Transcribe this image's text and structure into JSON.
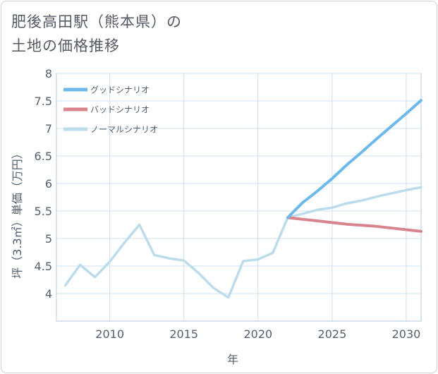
{
  "title_line1": "肥後高田駅（熊本県）の",
  "title_line2": "土地の価格推移",
  "chart_data": {
    "type": "line",
    "title": "肥後高田駅（熊本県）の土地の価格推移",
    "xlabel": "年",
    "ylabel": "坪（3.3㎡）単価（万円）",
    "xlim": [
      2006.4,
      2031
    ],
    "ylim": [
      3.5,
      8
    ],
    "xticks": [
      2010,
      2015,
      2020,
      2025,
      2030
    ],
    "yticks": [
      4,
      4.5,
      5,
      5.5,
      6,
      6.5,
      7,
      7.5,
      8
    ],
    "xtick_labels": [
      "2010",
      "2015",
      "2020",
      "2025",
      "2030"
    ],
    "ytick_labels": [
      "4",
      "4.5",
      "5",
      "5.5",
      "6",
      "6.5",
      "7",
      "7.5",
      "8"
    ],
    "grid": true,
    "legend_position": "top-left",
    "series": [
      {
        "name": "グッドシナリオ",
        "color": "#6db9ec",
        "x": [
          2022,
          2023,
          2024,
          2025,
          2026,
          2027,
          2028,
          2029,
          2030,
          2031
        ],
        "values": [
          5.38,
          5.65,
          5.86,
          6.09,
          6.34,
          6.57,
          6.81,
          7.04,
          7.27,
          7.51
        ]
      },
      {
        "name": "バッドシナリオ",
        "color": "#d9848d",
        "x": [
          2022,
          2023,
          2024,
          2025,
          2026,
          2027,
          2028,
          2029,
          2030,
          2031
        ],
        "values": [
          5.38,
          5.35,
          5.32,
          5.29,
          5.26,
          5.24,
          5.22,
          5.19,
          5.16,
          5.13
        ]
      },
      {
        "name": "ノーマルシナリオ",
        "color": "#bcdcec",
        "x": [
          2007,
          2008,
          2009,
          2010,
          2011,
          2012,
          2013,
          2014,
          2015,
          2016,
          2017,
          2018,
          2019,
          2020,
          2021,
          2022,
          2023,
          2024,
          2025,
          2026,
          2027,
          2028,
          2029,
          2030,
          2031
        ],
        "values": [
          4.15,
          4.52,
          4.3,
          4.58,
          4.93,
          5.25,
          4.7,
          4.64,
          4.6,
          4.37,
          4.1,
          3.93,
          4.59,
          4.62,
          4.74,
          5.38,
          5.45,
          5.52,
          5.56,
          5.64,
          5.69,
          5.76,
          5.82,
          5.88,
          5.93
        ]
      }
    ]
  }
}
